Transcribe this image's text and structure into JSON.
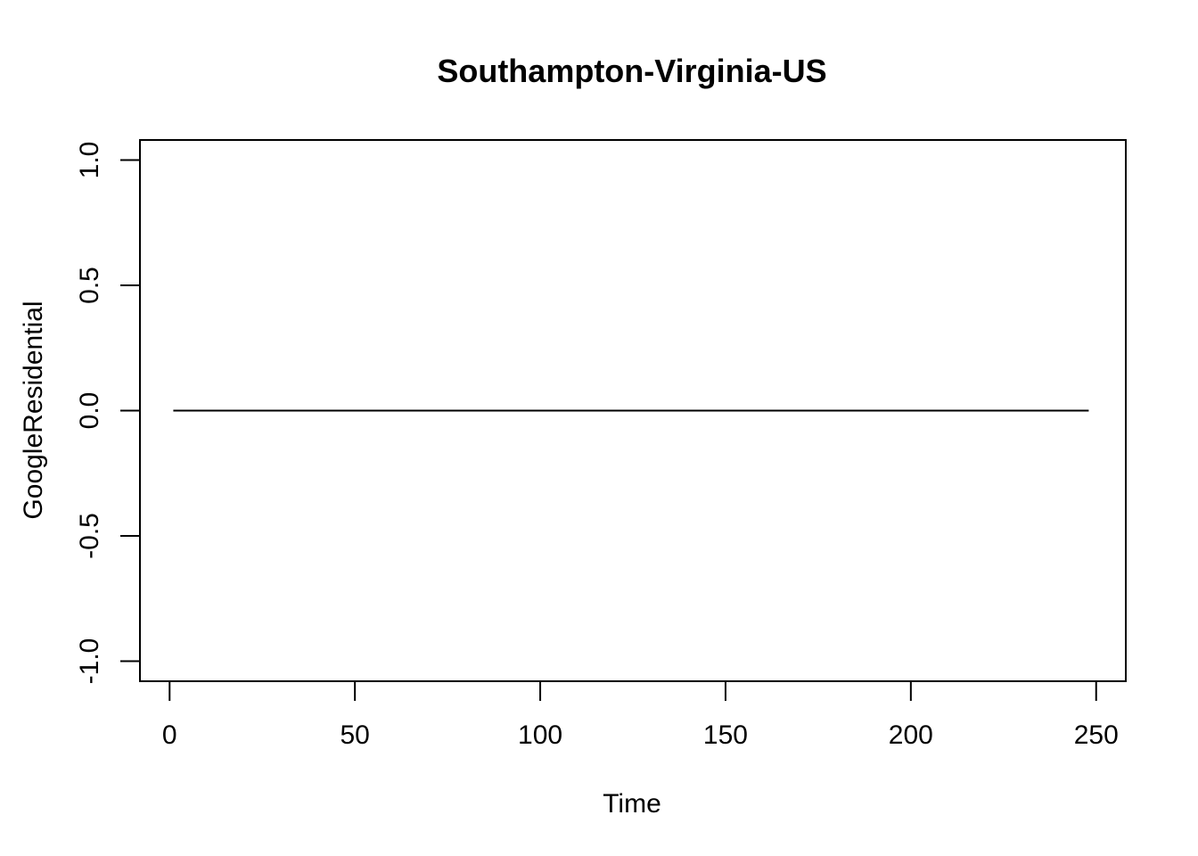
{
  "chart_data": {
    "type": "line",
    "title": "Southampton-Virginia-US",
    "xlabel": "Time",
    "ylabel": "GoogleResidential",
    "xlim": [
      -8,
      258
    ],
    "ylim": [
      -1.08,
      1.08
    ],
    "x_ticks": [
      0,
      50,
      100,
      150,
      200,
      250
    ],
    "x_tick_labels": [
      "0",
      "50",
      "100",
      "150",
      "200",
      "250"
    ],
    "y_ticks": [
      -1.0,
      -0.5,
      0.0,
      0.5,
      1.0
    ],
    "y_tick_labels": [
      "-1.0",
      "-0.5",
      "0.0",
      "0.5",
      "1.0"
    ],
    "grid": false,
    "series": [
      {
        "x_start": 1,
        "x_end": 248,
        "constant_value": 0,
        "color": "#000000"
      }
    ]
  }
}
